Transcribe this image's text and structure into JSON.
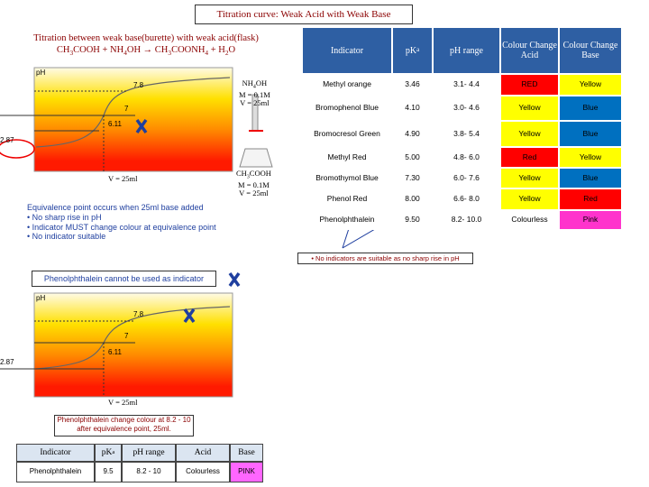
{
  "title": "Titration curve: Weak Acid with Weak Base",
  "setup": {
    "heading": "Titration between weak base(burette) with weak acid(flask)",
    "equation": [
      "CH",
      "3",
      "COOH + NH",
      "4",
      "OH → CH",
      "3",
      "COONH",
      "4",
      " + H",
      "2",
      "O"
    ]
  },
  "graph1": {
    "y_label": "pH",
    "levels": [
      "7.8",
      "7",
      "6.11",
      "2.87"
    ],
    "volume": "V = 25ml"
  },
  "base": {
    "name": [
      "NH",
      "4",
      "OH"
    ],
    "molarity": "M = 0.1M",
    "volume": "V = 25ml"
  },
  "acid": {
    "name": [
      "CH",
      "3",
      "COOH"
    ],
    "molarity": "M = 0.1M",
    "volume": "V = 25ml"
  },
  "notes": [
    "Equivalence point occurs when 25ml base added",
    "• No sharp rise in pH",
    "• Indicator MUST change colour at equivalence point",
    "• No indicator suitable"
  ],
  "table": {
    "header": [
      "Indicator",
      [
        "pK",
        "a"
      ],
      "pH range",
      "Colour Change Acid",
      "Colour Change Base"
    ],
    "rows": [
      [
        "Methyl orange",
        "3.46",
        "3.1- 4.4",
        "RED",
        "Yellow"
      ],
      [
        "Bromophenol Blue",
        "4.10",
        "3.0- 4.6",
        "Yellow",
        "Blue"
      ],
      [
        "Bromocresol Green",
        "4.90",
        "3.8- 5.4",
        "Yellow",
        "Blue"
      ],
      [
        "Methyl Red",
        "5.00",
        "4.8- 6.0",
        "Red",
        "Yellow"
      ],
      [
        "Bromothymol Blue",
        "7.30",
        "6.0- 7.6",
        "Yellow",
        "Blue"
      ],
      [
        "Phenol Red",
        "8.00",
        "6.6- 8.0",
        "Yellow",
        "Red"
      ],
      [
        "Phenolphthalein",
        "9.50",
        "8.2- 10.0",
        "Colourless",
        "Pink"
      ]
    ],
    "fills": [
      [
        "#ff0000",
        "#ffff00"
      ],
      [
        "#ffff00",
        "#0070c0"
      ],
      [
        "#ffff00",
        "#0070c0"
      ],
      [
        "#ff0000",
        "#ffff00"
      ],
      [
        "#ffff00",
        "#0070c0"
      ],
      [
        "#ffff00",
        "#ff0000"
      ],
      [
        "#ffffff",
        "#ff33cc"
      ]
    ]
  },
  "table_note": "• No indicators are suitable as no sharp rise in pH",
  "phenolphthalein": {
    "heading": "Phenolphthalein cannot be used as indicator",
    "graph": {
      "y_label": "pH",
      "levels": [
        "7.8",
        "7",
        "6.11",
        "2.87"
      ],
      "volume": "V = 25ml"
    },
    "note": "Phenolphthalein change colour at 8.2 - 10 after equivalence point, 25ml.",
    "table": {
      "header": [
        "Indicator",
        [
          "pK",
          "a"
        ],
        "pH range",
        "Acid",
        "Base"
      ],
      "rows": [
        [
          "Phenolphthalein",
          "9.5",
          "8.2 - 10",
          "Colourless",
          "PINK"
        ]
      ],
      "fills": [
        [
          "#ffffff",
          "#ff66ff"
        ]
      ]
    }
  }
}
